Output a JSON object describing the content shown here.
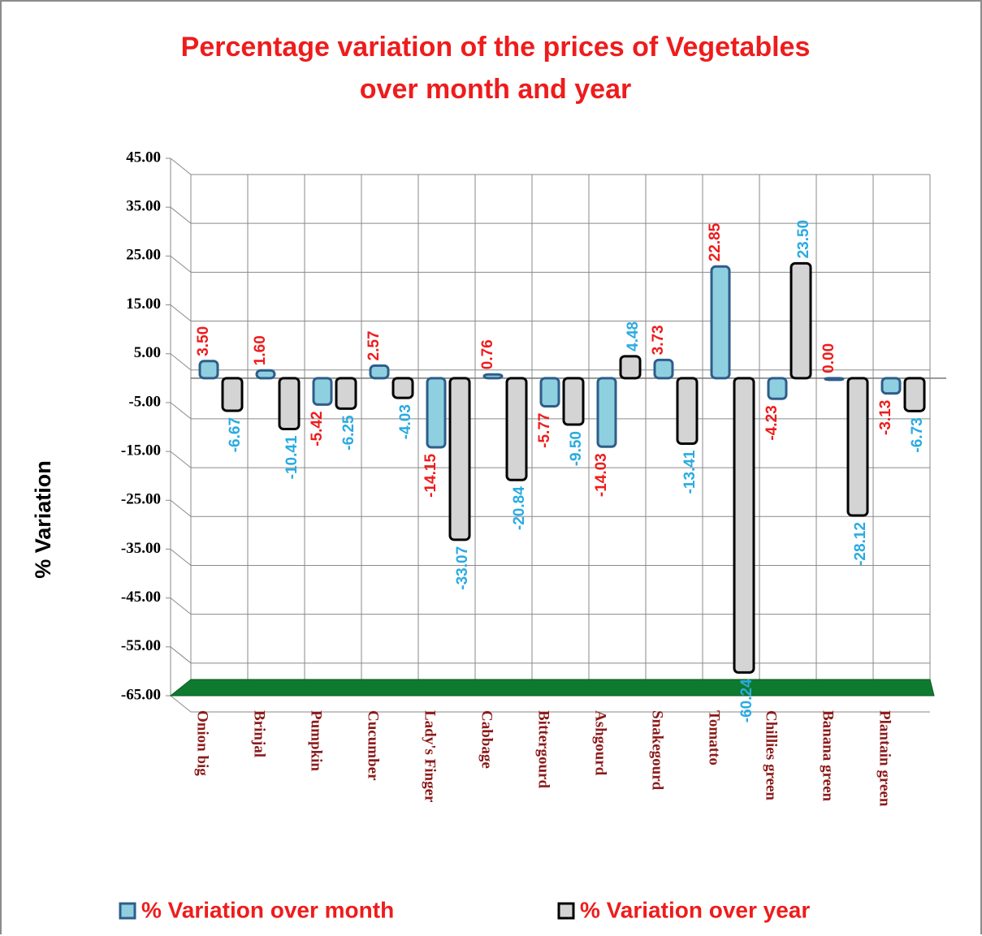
{
  "chart_data": {
    "type": "bar",
    "title": "Percentage variation of the prices of Vegetables over month and year",
    "y_label": "% Variation",
    "categories": [
      "Onion big",
      "Brinjal",
      "Pumpkin",
      "Cucumber",
      "Lady's Finger",
      "Cabbage",
      "Bittergourd",
      "Ashgourd",
      "Snakegourd",
      "Tomatto",
      "Chillies green",
      "Banana green",
      "Plantain green"
    ],
    "series": [
      {
        "name": "% Variation over month",
        "color": "#8fd0e0",
        "label_color": "#ee1c1c",
        "values": [
          3.5,
          1.6,
          -5.42,
          2.57,
          -14.15,
          0.76,
          -5.77,
          -14.03,
          3.73,
          22.85,
          -4.23,
          0,
          -3.13
        ],
        "value_labels": [
          "3.50",
          "1.60",
          "-5.42",
          "2.57",
          "-14.15",
          "0.76",
          "-5.77",
          "-14.03",
          "3.73",
          "22.85",
          "-4.23",
          "0.00",
          "-3.13"
        ]
      },
      {
        "name": "% Variation over year",
        "color": "#d4d4d4",
        "label_color": "#29abe2",
        "values": [
          -6.67,
          -10.41,
          -6.25,
          -4.03,
          -33.07,
          -20.84,
          -9.5,
          4.48,
          -13.41,
          -60.24,
          23.5,
          -28.12,
          -6.73
        ],
        "value_labels": [
          "-6.67",
          "-10.41",
          "-6.25",
          "-4.03",
          "-33.07",
          "-20.84",
          "-9.50",
          "4.48",
          "-13.41",
          "-60.24",
          "23.50",
          "-28.12",
          "-6.73"
        ]
      }
    ],
    "ylim": [
      -65,
      45
    ],
    "yticks": [
      {
        "value": 45,
        "label": "45.00"
      },
      {
        "value": 35,
        "label": "35.00"
      },
      {
        "value": 25,
        "label": "25.00"
      },
      {
        "value": 15,
        "label": "15.00"
      },
      {
        "value": 5,
        "label": "5.00"
      },
      {
        "value": -5,
        "label": "-5.00"
      },
      {
        "value": -15,
        "label": "-15.00"
      },
      {
        "value": -25,
        "label": "-25.00"
      },
      {
        "value": -35,
        "label": "-35.00"
      },
      {
        "value": -45,
        "label": "-45.00"
      },
      {
        "value": -55,
        "label": "-55.00"
      },
      {
        "value": -65,
        "label": "-65.00"
      }
    ],
    "grid": true
  }
}
